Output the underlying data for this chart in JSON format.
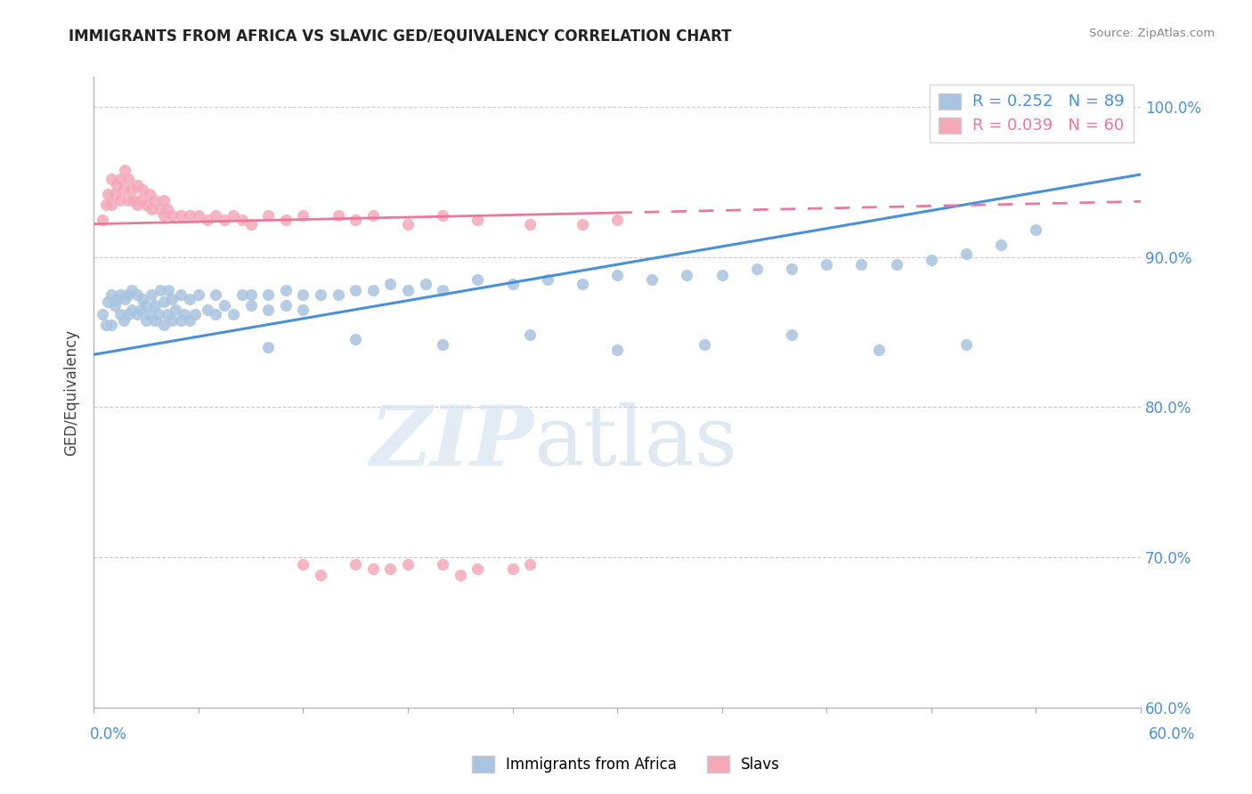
{
  "title": "IMMIGRANTS FROM AFRICA VS SLAVIC GED/EQUIVALENCY CORRELATION CHART",
  "source": "Source: ZipAtlas.com",
  "ylabel": "GED/Equivalency",
  "ytick_labels": [
    "100.0%",
    "90.0%",
    "80.0%",
    "70.0%",
    "60.0%"
  ],
  "ytick_values": [
    1.0,
    0.9,
    0.8,
    0.7,
    0.6
  ],
  "xlim": [
    0.0,
    0.6
  ],
  "ylim": [
    0.6,
    1.02
  ],
  "blue_R": 0.252,
  "blue_N": 89,
  "pink_R": 0.039,
  "pink_N": 60,
  "blue_color": "#a8c4e0",
  "pink_color": "#f4a8b8",
  "blue_line_color": "#4a90d9",
  "pink_line_color": "#e8799a",
  "watermark_zip": "ZIP",
  "watermark_atlas": "atlas",
  "blue_trend_x0": 0.0,
  "blue_trend_y0": 0.835,
  "blue_trend_x1": 0.6,
  "blue_trend_y1": 0.955,
  "pink_trend_x0": 0.0,
  "pink_trend_y0": 0.922,
  "pink_trend_x1": 0.4,
  "pink_trend_y1": 0.932,
  "blue_scatter_x": [
    0.005,
    0.007,
    0.008,
    0.01,
    0.01,
    0.012,
    0.013,
    0.015,
    0.015,
    0.017,
    0.018,
    0.02,
    0.02,
    0.022,
    0.022,
    0.025,
    0.025,
    0.027,
    0.028,
    0.03,
    0.03,
    0.032,
    0.033,
    0.035,
    0.035,
    0.037,
    0.038,
    0.04,
    0.04,
    0.042,
    0.043,
    0.045,
    0.045,
    0.047,
    0.05,
    0.05,
    0.052,
    0.055,
    0.055,
    0.058,
    0.06,
    0.065,
    0.07,
    0.07,
    0.075,
    0.08,
    0.085,
    0.09,
    0.09,
    0.1,
    0.1,
    0.11,
    0.11,
    0.12,
    0.12,
    0.13,
    0.14,
    0.15,
    0.16,
    0.17,
    0.18,
    0.19,
    0.2,
    0.22,
    0.24,
    0.26,
    0.28,
    0.3,
    0.32,
    0.34,
    0.36,
    0.38,
    0.4,
    0.42,
    0.44,
    0.46,
    0.48,
    0.5,
    0.52,
    0.54,
    0.1,
    0.15,
    0.2,
    0.25,
    0.3,
    0.35,
    0.4,
    0.45,
    0.5
  ],
  "blue_scatter_y": [
    0.862,
    0.855,
    0.87,
    0.855,
    0.875,
    0.868,
    0.872,
    0.862,
    0.875,
    0.858,
    0.872,
    0.862,
    0.875,
    0.865,
    0.878,
    0.862,
    0.875,
    0.865,
    0.872,
    0.858,
    0.868,
    0.862,
    0.875,
    0.858,
    0.868,
    0.862,
    0.878,
    0.855,
    0.87,
    0.862,
    0.878,
    0.858,
    0.872,
    0.865,
    0.858,
    0.875,
    0.862,
    0.858,
    0.872,
    0.862,
    0.875,
    0.865,
    0.862,
    0.875,
    0.868,
    0.862,
    0.875,
    0.868,
    0.875,
    0.865,
    0.875,
    0.868,
    0.878,
    0.865,
    0.875,
    0.875,
    0.875,
    0.878,
    0.878,
    0.882,
    0.878,
    0.882,
    0.878,
    0.885,
    0.882,
    0.885,
    0.882,
    0.888,
    0.885,
    0.888,
    0.888,
    0.892,
    0.892,
    0.895,
    0.895,
    0.895,
    0.898,
    0.902,
    0.908,
    0.918,
    0.84,
    0.845,
    0.842,
    0.848,
    0.838,
    0.842,
    0.848,
    0.838,
    0.842
  ],
  "pink_scatter_x": [
    0.005,
    0.007,
    0.008,
    0.01,
    0.01,
    0.012,
    0.013,
    0.015,
    0.015,
    0.017,
    0.018,
    0.02,
    0.02,
    0.022,
    0.023,
    0.025,
    0.025,
    0.027,
    0.028,
    0.03,
    0.032,
    0.033,
    0.035,
    0.038,
    0.04,
    0.04,
    0.042,
    0.045,
    0.05,
    0.055,
    0.06,
    0.065,
    0.07,
    0.075,
    0.08,
    0.085,
    0.09,
    0.1,
    0.11,
    0.12,
    0.14,
    0.15,
    0.16,
    0.18,
    0.2,
    0.22,
    0.25,
    0.28,
    0.3,
    0.15,
    0.18,
    0.22,
    0.25,
    0.13,
    0.17,
    0.21,
    0.24,
    0.12,
    0.16,
    0.2
  ],
  "pink_scatter_y": [
    0.925,
    0.935,
    0.942,
    0.935,
    0.952,
    0.942,
    0.948,
    0.938,
    0.952,
    0.945,
    0.958,
    0.938,
    0.952,
    0.945,
    0.938,
    0.935,
    0.948,
    0.938,
    0.945,
    0.935,
    0.942,
    0.932,
    0.938,
    0.932,
    0.928,
    0.938,
    0.932,
    0.928,
    0.928,
    0.928,
    0.928,
    0.925,
    0.928,
    0.925,
    0.928,
    0.925,
    0.922,
    0.928,
    0.925,
    0.928,
    0.928,
    0.925,
    0.928,
    0.922,
    0.928,
    0.925,
    0.922,
    0.922,
    0.925,
    0.695,
    0.695,
    0.692,
    0.695,
    0.688,
    0.692,
    0.688,
    0.692,
    0.695,
    0.692,
    0.695
  ]
}
